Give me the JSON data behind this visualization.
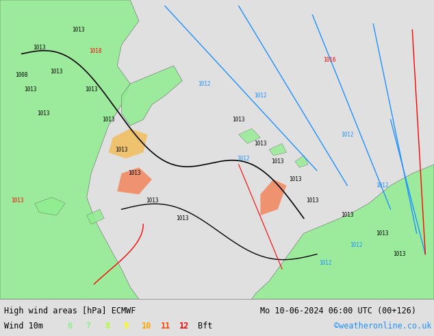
{
  "title_left": "High wind areas [hPa] ECMWF",
  "title_right": "Mo 10-06-2024 06:00 UTC (00+126)",
  "subtitle_left": "Wind 10m",
  "subtitle_right": "©weatheronline.co.uk",
  "bft_numbers": [
    "6",
    "7",
    "8",
    "9",
    "10",
    "11",
    "12"
  ],
  "bft_colors": [
    "#90EE90",
    "#90EE90",
    "#ADFF2F",
    "#FFFF00",
    "#FFA500",
    "#FF4500",
    "#FF0000"
  ],
  "bg_color": "#e0e0e0",
  "bottom_bar_bg": "#d0d0d0",
  "land_color": "#90EE90",
  "ocean_color": "#d8d8d8",
  "fig_width": 6.34,
  "fig_height": 4.9,
  "dpi": 100
}
